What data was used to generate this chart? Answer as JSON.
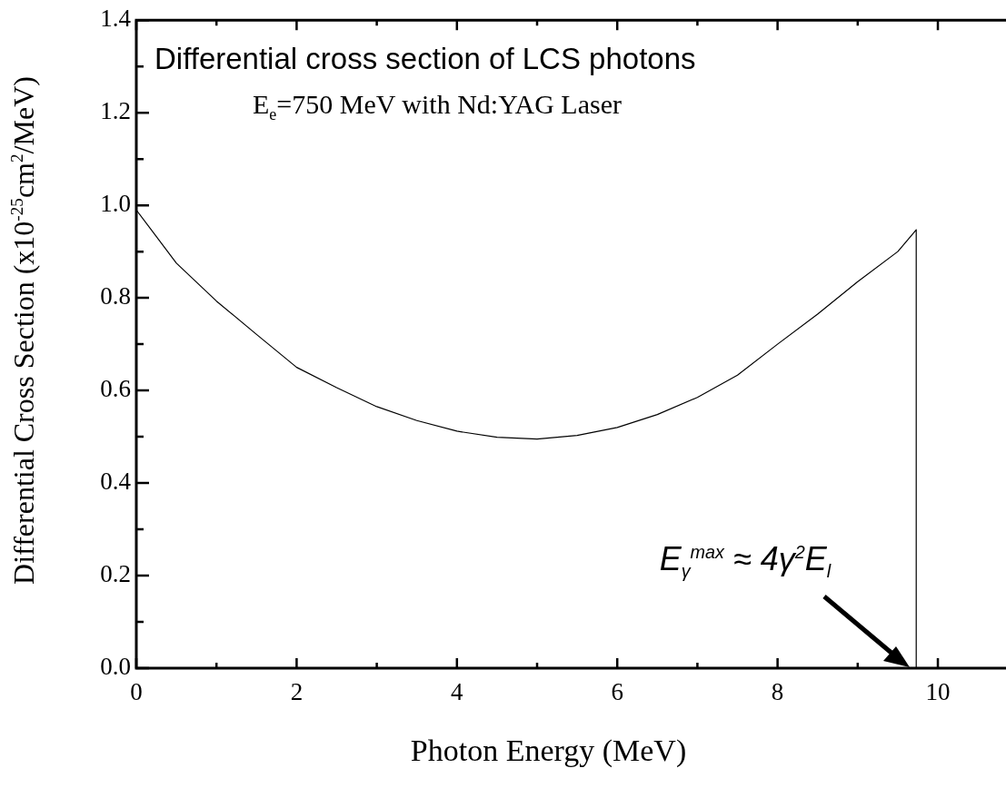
{
  "chart_data": {
    "type": "line",
    "title": "Differential cross section of LCS photons",
    "subtitle": "E$_{e}$=750 MeV with Nd:YAG Laser",
    "xlabel": "Photon Energy (MeV)",
    "ylabel": "Differential Cross Section (x10$^{-25}$cm$^{2}$/MeV)",
    "series": [
      {
        "color": "#000000",
        "x": [
          0,
          0.5,
          1,
          1.5,
          2,
          2.5,
          3,
          3.5,
          4,
          4.5,
          5,
          5.5,
          6,
          6.5,
          7,
          7.5,
          8,
          8.5,
          9,
          9.5,
          9.73,
          9.73
        ],
        "values": [
          0.99,
          0.875,
          0.793,
          0.721,
          0.65,
          0.606,
          0.565,
          0.535,
          0.512,
          0.499,
          0.495,
          0.503,
          0.52,
          0.548,
          0.585,
          0.633,
          0.7,
          0.765,
          0.835,
          0.9,
          0.947,
          0
        ]
      }
    ],
    "xlim": [
      0,
      10.85
    ],
    "xticks": [
      0,
      {
        "value": 1,
        "label": null
      },
      2,
      {
        "value": 3,
        "label": null
      },
      4,
      {
        "value": 5,
        "label": null
      },
      6,
      {
        "value": 7,
        "label": null
      },
      8,
      {
        "value": 9,
        "label": null
      },
      10
    ],
    "ylim": [
      0,
      1.4
    ],
    "yticks": [
      {
        "value": 0,
        "label": "0.0"
      },
      {
        "value": 0.1,
        "label": null
      },
      {
        "value": 0.2,
        "label": "0.2"
      },
      {
        "value": 0.3,
        "label": null
      },
      {
        "value": 0.4,
        "label": "0.4"
      },
      {
        "value": 0.5,
        "label": null
      },
      {
        "value": 0.6,
        "label": "0.6"
      },
      {
        "value": 0.7,
        "label": null
      },
      {
        "value": 0.8,
        "label": "0.8"
      },
      {
        "value": 0.9,
        "label": null
      },
      {
        "value": 1,
        "label": "1.0"
      },
      {
        "value": 1.1,
        "label": null
      },
      {
        "value": 1.2,
        "label": "1.2"
      },
      {
        "value": 1.3,
        "label": null
      },
      {
        "value": 1.4,
        "label": "1.4"
      }
    ],
    "annotations": [
      "E$_{γ}$$^{max}$ ≈ 4γ$^{2}$E$_{l}$"
    ],
    "grid": false,
    "legend": false,
    "marker": "none",
    "line_style": "solid"
  }
}
